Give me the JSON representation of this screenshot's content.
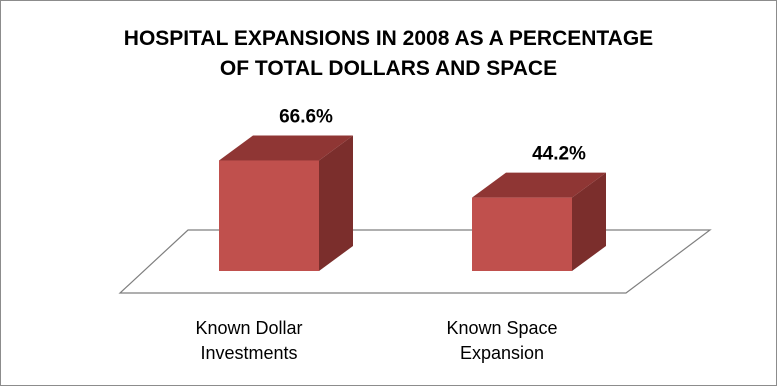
{
  "chart_data": {
    "type": "bar",
    "title_lines": [
      "HOSPITAL EXPANSIONS IN 2008 AS A PERCENTAGE",
      "OF TOTAL DOLLARS AND SPACE"
    ],
    "categories": [
      [
        "Known Dollar",
        "Investments"
      ],
      [
        "Known Space",
        "Expansion"
      ]
    ],
    "values": [
      66.6,
      44.2
    ],
    "value_labels": [
      "66.6%",
      "44.2%"
    ],
    "unit": "%",
    "ylim": [
      0,
      100
    ],
    "grid": false,
    "legend": "none",
    "style": "3d-column",
    "colors": {
      "bar_front": "#c0504d",
      "bar_side": "#7b2e2c",
      "bar_top": "#8f3634",
      "floor": "#ffffff",
      "floor_edge": "#7f7f7f"
    }
  }
}
